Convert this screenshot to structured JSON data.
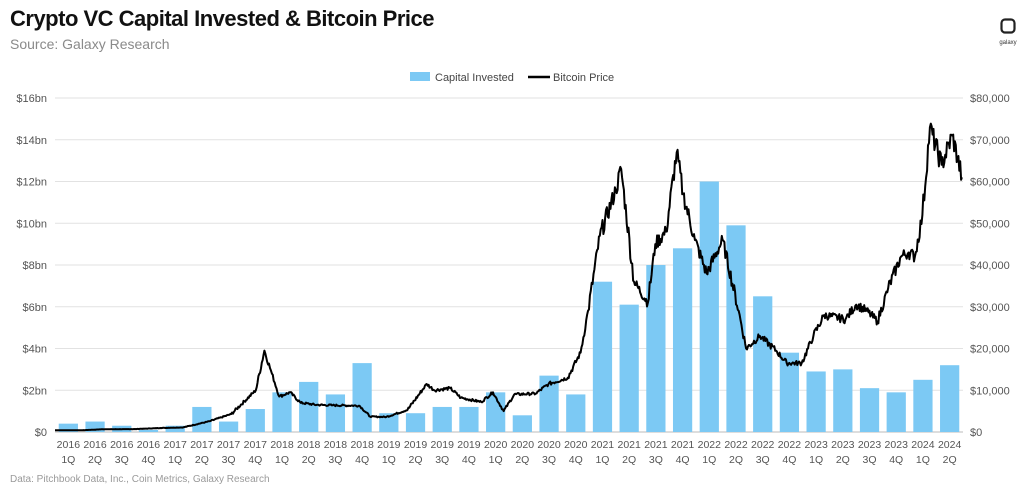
{
  "header": {
    "title": "Crypto VC Capital Invested & Bitcoin Price",
    "subtitle": "Source: Galaxy Research",
    "logo_text": "galaxy"
  },
  "footer": {
    "note": "Data: Pitchbook Data, Inc., Coin Metrics, Galaxy Research"
  },
  "colors": {
    "bars": "#7cc9f4",
    "line": "#000000",
    "grid": "#e2e2e2"
  },
  "chart_data": {
    "type": "bar+line",
    "legend": [
      "Capital Invested",
      "Bitcoin Price"
    ],
    "legend_position": "top-center",
    "grid": true,
    "categories": [
      [
        "2016",
        "1Q"
      ],
      [
        "2016",
        "2Q"
      ],
      [
        "2016",
        "3Q"
      ],
      [
        "2016",
        "4Q"
      ],
      [
        "2017",
        "1Q"
      ],
      [
        "2017",
        "2Q"
      ],
      [
        "2017",
        "3Q"
      ],
      [
        "2017",
        "4Q"
      ],
      [
        "2018",
        "1Q"
      ],
      [
        "2018",
        "2Q"
      ],
      [
        "2018",
        "3Q"
      ],
      [
        "2018",
        "4Q"
      ],
      [
        "2019",
        "1Q"
      ],
      [
        "2019",
        "2Q"
      ],
      [
        "2019",
        "3Q"
      ],
      [
        "2019",
        "4Q"
      ],
      [
        "2020",
        "1Q"
      ],
      [
        "2020",
        "2Q"
      ],
      [
        "2020",
        "3Q"
      ],
      [
        "2020",
        "4Q"
      ],
      [
        "2021",
        "1Q"
      ],
      [
        "2021",
        "2Q"
      ],
      [
        "2021",
        "3Q"
      ],
      [
        "2021",
        "4Q"
      ],
      [
        "2022",
        "1Q"
      ],
      [
        "2022",
        "2Q"
      ],
      [
        "2022",
        "3Q"
      ],
      [
        "2022",
        "4Q"
      ],
      [
        "2023",
        "1Q"
      ],
      [
        "2023",
        "2Q"
      ],
      [
        "2023",
        "3Q"
      ],
      [
        "2023",
        "4Q"
      ],
      [
        "2024",
        "1Q"
      ],
      [
        "2024",
        "2Q"
      ]
    ],
    "capital_invested_bn": [
      0.4,
      0.5,
      0.3,
      0.1,
      0.3,
      1.2,
      0.5,
      1.1,
      1.9,
      2.4,
      1.8,
      3.3,
      0.9,
      0.9,
      1.2,
      1.2,
      1.9,
      0.8,
      2.7,
      1.8,
      7.2,
      6.1,
      8.0,
      8.8,
      12.0,
      9.9,
      6.5,
      3.8,
      2.9,
      3.0,
      2.1,
      1.9,
      2.5,
      3.2
    ],
    "bitcoin_price_usd": [
      [
        2016.0,
        430
      ],
      [
        2016.25,
        420
      ],
      [
        2016.45,
        650
      ],
      [
        2016.75,
        700
      ],
      [
        2016.99,
        960
      ],
      [
        2017.2,
        1100
      ],
      [
        2017.45,
        2600
      ],
      [
        2017.65,
        4300
      ],
      [
        2017.88,
        10000
      ],
      [
        2017.96,
        19500
      ],
      [
        2018.03,
        14000
      ],
      [
        2018.1,
        8500
      ],
      [
        2018.2,
        9500
      ],
      [
        2018.3,
        7000
      ],
      [
        2018.45,
        6500
      ],
      [
        2018.6,
        6400
      ],
      [
        2018.85,
        6300
      ],
      [
        2018.95,
        3700
      ],
      [
        2019.1,
        3600
      ],
      [
        2019.3,
        5300
      ],
      [
        2019.48,
        11500
      ],
      [
        2019.55,
        10000
      ],
      [
        2019.7,
        10500
      ],
      [
        2019.8,
        8200
      ],
      [
        2019.99,
        7200
      ],
      [
        2020.1,
        9500
      ],
      [
        2020.2,
        5000
      ],
      [
        2020.3,
        9000
      ],
      [
        2020.5,
        9200
      ],
      [
        2020.62,
        11500
      ],
      [
        2020.8,
        13000
      ],
      [
        2020.92,
        19000
      ],
      [
        2020.99,
        29000
      ],
      [
        2021.1,
        47000
      ],
      [
        2021.25,
        58000
      ],
      [
        2021.3,
        63000
      ],
      [
        2021.42,
        36000
      ],
      [
        2021.55,
        31000
      ],
      [
        2021.62,
        45000
      ],
      [
        2021.72,
        48000
      ],
      [
        2021.82,
        67000
      ],
      [
        2021.88,
        57000
      ],
      [
        2021.99,
        46000
      ],
      [
        2022.1,
        38000
      ],
      [
        2022.25,
        46000
      ],
      [
        2022.4,
        29000
      ],
      [
        2022.47,
        20000
      ],
      [
        2022.6,
        23000
      ],
      [
        2022.75,
        19500
      ],
      [
        2022.85,
        16500
      ],
      [
        2022.99,
        16500
      ],
      [
        2023.1,
        23000
      ],
      [
        2023.2,
        28000
      ],
      [
        2023.4,
        27000
      ],
      [
        2023.5,
        30500
      ],
      [
        2023.6,
        29000
      ],
      [
        2023.7,
        26500
      ],
      [
        2023.8,
        34500
      ],
      [
        2023.92,
        42000
      ],
      [
        2023.99,
        43000
      ],
      [
        2024.05,
        42000
      ],
      [
        2024.12,
        52000
      ],
      [
        2024.19,
        73000
      ],
      [
        2024.3,
        64000
      ],
      [
        2024.4,
        71000
      ],
      [
        2024.49,
        61000
      ]
    ],
    "y_left": {
      "min": 0,
      "max": 16,
      "ticks": [
        "$0",
        "$2bn",
        "$4bn",
        "$6bn",
        "$8bn",
        "$10bn",
        "$12bn",
        "$14bn",
        "$16bn"
      ]
    },
    "y_right": {
      "min": 0,
      "max": 80000,
      "ticks": [
        "$0",
        "$10,000",
        "$20,000",
        "$30,000",
        "$40,000",
        "$50,000",
        "$60,000",
        "$70,000",
        "$80,000"
      ]
    }
  }
}
